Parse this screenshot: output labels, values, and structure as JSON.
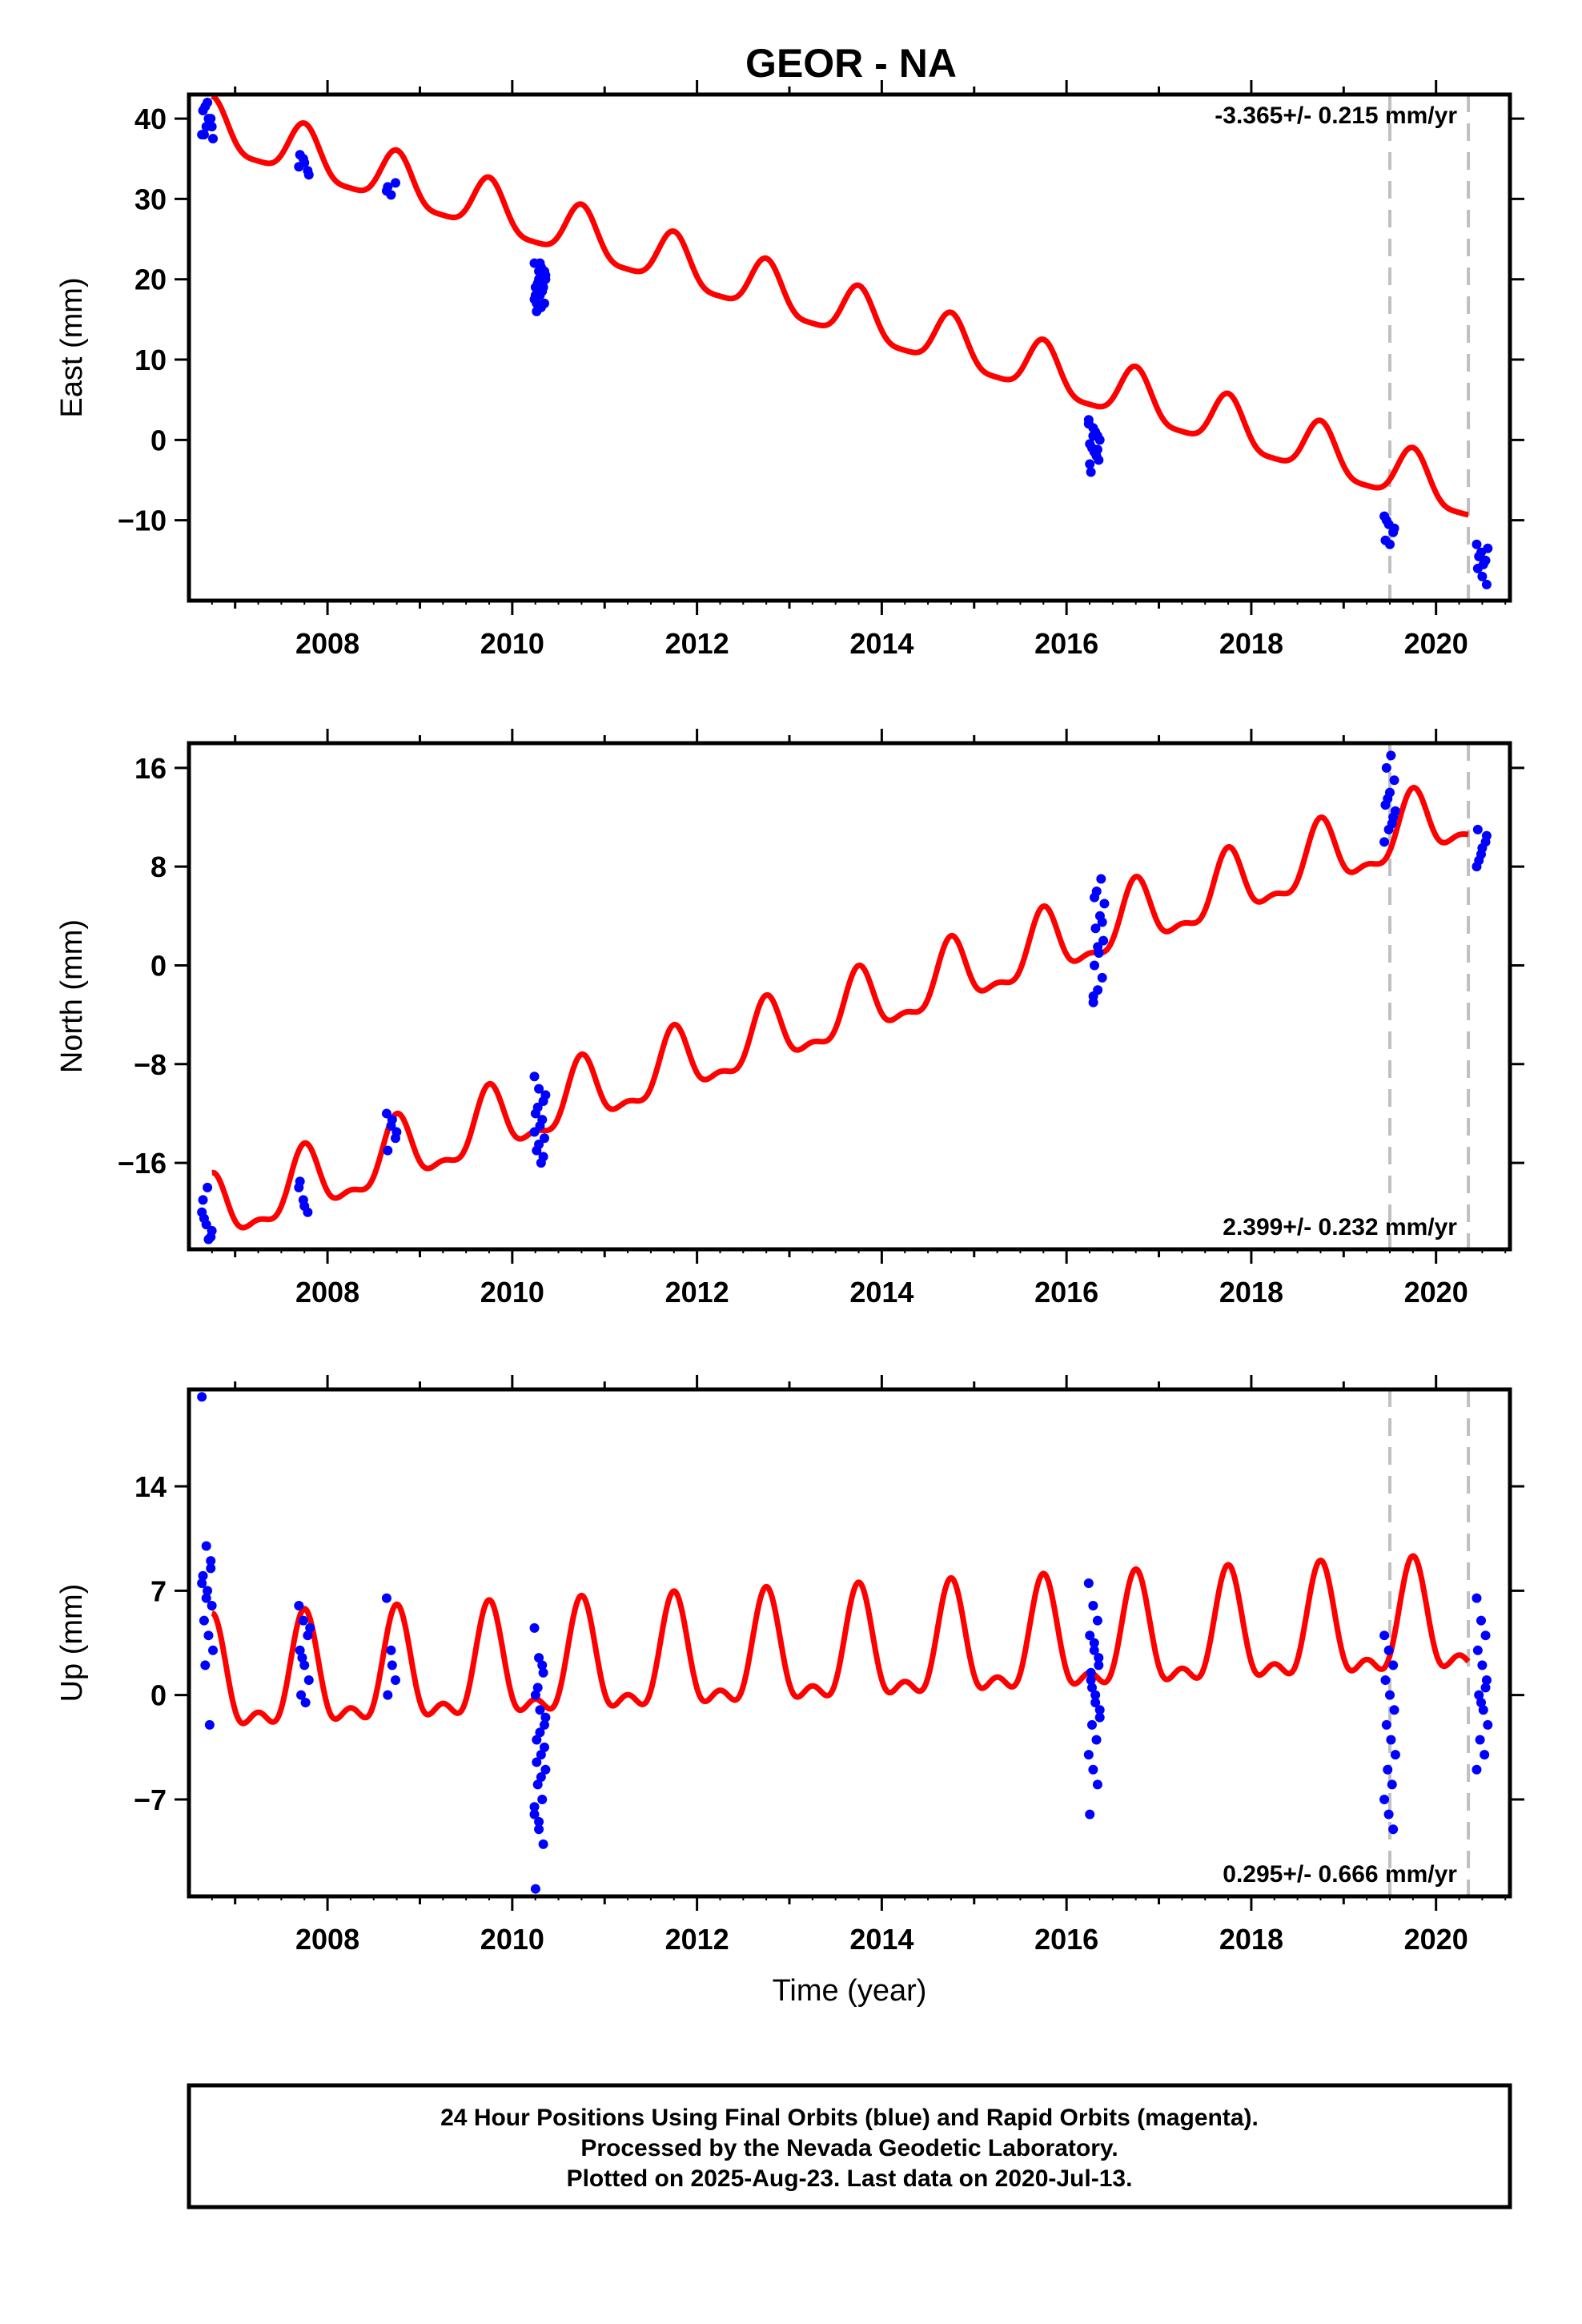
{
  "chart_data": {
    "type": "scatter",
    "title": "GEOR - NA",
    "xlabel": "Time (year)",
    "xlim": [
      2006.5,
      2020.8
    ],
    "xticks": [
      2008,
      2010,
      2012,
      2014,
      2016,
      2018,
      2020
    ],
    "vlines": [
      2019.5,
      2020.35
    ],
    "panels": [
      {
        "ylabel": "East (mm)",
        "ylim": [
          -20,
          43
        ],
        "yticks": [
          40,
          30,
          20,
          10,
          0,
          -10
        ],
        "ytick_labels": [
          "40",
          "30",
          "20",
          "10",
          "0",
          "−10"
        ],
        "rate_text": "-3.365+/- 0.215 mm/yr",
        "rate_pos": "top",
        "trend": {
          "slope": -3.365,
          "ref_year": 2006.75,
          "ref_value": 38.8,
          "annual_amp": 3.2,
          "semiannual_amp": 0.8
        },
        "scatter": [
          {
            "year": 2006.7,
            "values": [
              38,
              39,
              40,
              41,
              42,
              39,
              38,
              40,
              37.5,
              41.5
            ]
          },
          {
            "year": 2007.75,
            "values": [
              34,
              35,
              33.5,
              35.5,
              34.5,
              33
            ]
          },
          {
            "year": 2008.7,
            "values": [
              31,
              30.5,
              32,
              31.5
            ]
          },
          {
            "year": 2010.3,
            "values": [
              22,
              21,
              20,
              19,
              18,
              17,
              16,
              21.5,
              20.5,
              19.5,
              18.5,
              17.5,
              20,
              19,
              18,
              22,
              21,
              17,
              16.5,
              20
            ]
          },
          {
            "year": 2016.3,
            "values": [
              2.5,
              1.5,
              0.5,
              -0.5,
              -1.5,
              -2.5,
              -4,
              1,
              0,
              -1,
              -2,
              2,
              0.5,
              -1.2,
              -3
            ]
          },
          {
            "year": 2019.5,
            "values": [
              -9.5,
              -10.5,
              -11.5,
              -12.5,
              -13,
              -11,
              -10
            ]
          },
          {
            "year": 2020.5,
            "values": [
              -13,
              -14,
              -15,
              -16,
              -17,
              -18,
              -14.5,
              -15.5,
              -13.5
            ]
          }
        ]
      },
      {
        "ylabel": "North (mm)",
        "ylim": [
          -23,
          18
        ],
        "yticks": [
          16,
          8,
          0,
          -8,
          -16
        ],
        "ytick_labels": [
          "16",
          "8",
          "0",
          "−8",
          "−16"
        ],
        "rate_text": "2.399+/- 0.232 mm/yr",
        "rate_pos": "bottom",
        "trend": {
          "slope": 2.399,
          "ref_year": 2006.75,
          "ref_value": -20.3,
          "annual_amp": 2.5,
          "semiannual_amp": 1.0
        },
        "scatter": [
          {
            "year": 2006.7,
            "values": [
              -20,
              -21,
              -22,
              -19,
              -18,
              -21.5,
              -20.5,
              -22.2
            ]
          },
          {
            "year": 2007.75,
            "values": [
              -18,
              -19,
              -20,
              -17.5,
              -19.5
            ]
          },
          {
            "year": 2008.7,
            "values": [
              -12,
              -13,
              -14,
              -15,
              -12.5,
              -13.5
            ]
          },
          {
            "year": 2010.3,
            "values": [
              -9,
              -10,
              -11,
              -12,
              -13,
              -14,
              -15,
              -16,
              -10.5,
              -11.5,
              -12.5,
              -13.5,
              -14.5,
              -15.5
            ]
          },
          {
            "year": 2016.35,
            "values": [
              -3,
              -2,
              -1,
              0,
              1,
              2,
              3,
              4,
              5,
              6,
              7,
              -2.5,
              1.5,
              3.5,
              5.5
            ]
          },
          {
            "year": 2019.5,
            "values": [
              10,
              11,
              12,
              13,
              14,
              15,
              16,
              17,
              12.5,
              13.5,
              11.5
            ]
          },
          {
            "year": 2020.5,
            "values": [
              8,
              9,
              10,
              11,
              9.5,
              10.5,
              8.5
            ]
          }
        ]
      },
      {
        "ylabel": "Up (mm)",
        "ylim": [
          -13.5,
          20.5
        ],
        "yticks": [
          14,
          7,
          0,
          -7
        ],
        "ytick_labels": [
          "14",
          "7",
          "0",
          "−7"
        ],
        "rate_text": "0.295+/- 0.666 mm/yr",
        "rate_pos": "bottom",
        "trend": {
          "slope": 0.295,
          "ref_year": 2006.75,
          "ref_value": 0.5,
          "annual_amp": 3.4,
          "semiannual_amp": 1.6
        },
        "scatter": [
          {
            "year": 2006.7,
            "values": [
              20,
              10,
              9,
              8,
              7,
              6,
              5,
              4,
              3,
              2,
              -2,
              7.5,
              6.5,
              8.5
            ]
          },
          {
            "year": 2007.75,
            "values": [
              6,
              5,
              4,
              3,
              2,
              1,
              0,
              -0.5,
              4.5,
              2.5
            ]
          },
          {
            "year": 2008.7,
            "values": [
              6.5,
              3,
              1,
              0,
              2
            ]
          },
          {
            "year": 2010.3,
            "values": [
              4.5,
              2.5,
              1.5,
              0,
              -1,
              -2,
              -3,
              -4,
              -5,
              -6,
              -7,
              -8,
              -9,
              -10,
              -13,
              -2.5,
              -3.5,
              -4.5,
              -5.5,
              -1.5,
              0.5,
              2,
              -7.5,
              -8.5
            ]
          },
          {
            "year": 2016.3,
            "values": [
              7.5,
              6,
              5,
              4,
              3,
              2,
              1,
              0,
              -1,
              -2,
              -3,
              -4,
              -5,
              -6,
              -8,
              3.5,
              2.5,
              1.5,
              -0.5,
              -1.5,
              0.5
            ]
          },
          {
            "year": 2019.5,
            "values": [
              4,
              3,
              2,
              1,
              0,
              -1,
              -2,
              -3,
              -4,
              -5,
              -6,
              -7,
              -8,
              -9
            ]
          },
          {
            "year": 2020.5,
            "values": [
              6.5,
              5,
              4,
              3,
              2,
              1,
              0,
              -1,
              -2,
              -3,
              -4,
              -5,
              -0.5,
              0.5
            ]
          }
        ]
      }
    ],
    "colors": {
      "final_orbits": "#0000ff",
      "model": "#ff0000",
      "vline": "#c0c0c0"
    }
  },
  "footer": {
    "line1": "24 Hour Positions Using Final Orbits (blue) and Rapid Orbits (magenta).",
    "line2": "Processed by the Nevada Geodetic Laboratory.",
    "line3": "Plotted on 2025-Aug-23. Last data on 2020-Jul-13."
  }
}
